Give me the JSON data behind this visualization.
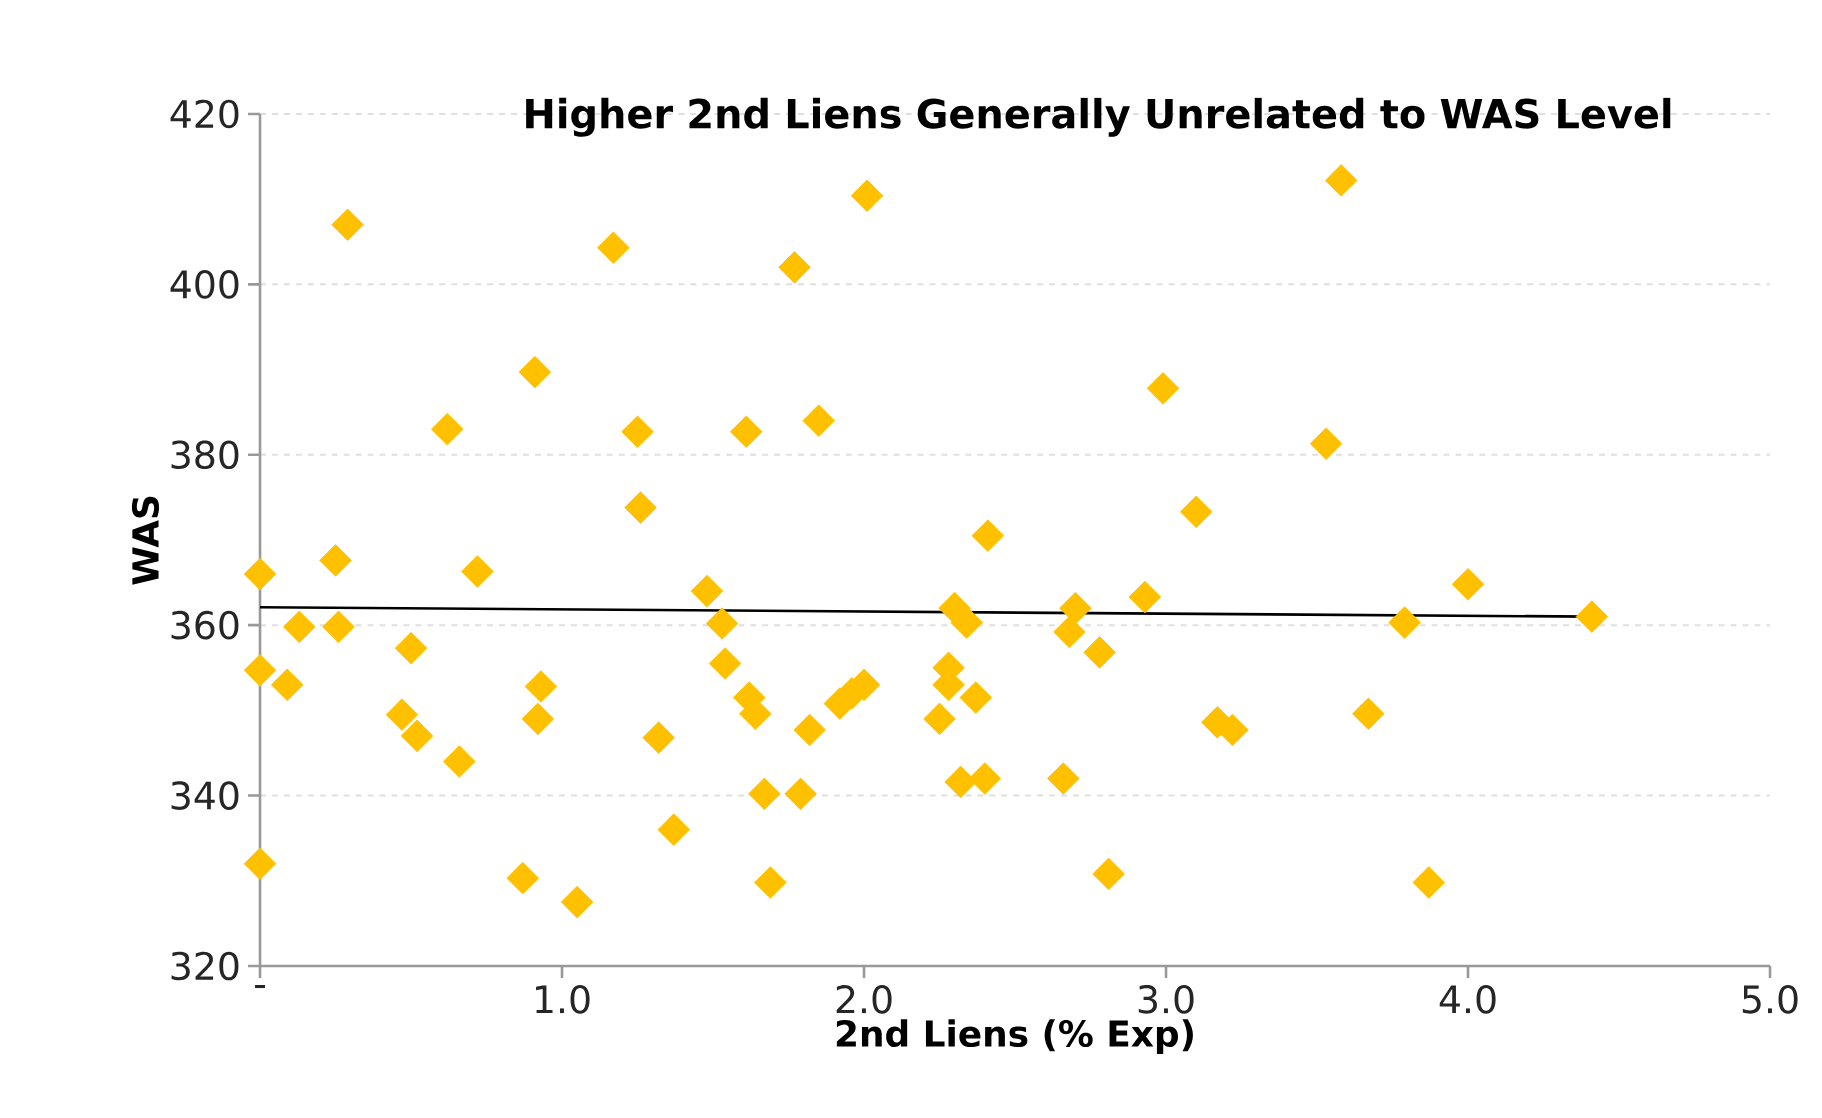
{
  "chart_data": {
    "type": "scatter",
    "title": "Higher 2nd Liens Generally Unrelated to WAS Level",
    "xlabel": "2nd Liens (% Exp)",
    "ylabel": "WAS",
    "xlim": [
      0,
      5
    ],
    "ylim": [
      320,
      420
    ],
    "xticks": [
      {
        "value": 0,
        "label": "-"
      },
      {
        "value": 1,
        "label": "1.0"
      },
      {
        "value": 2,
        "label": "2.0"
      },
      {
        "value": 3,
        "label": "3.0"
      },
      {
        "value": 4,
        "label": "4.0"
      },
      {
        "value": 5,
        "label": "5.0"
      }
    ],
    "yticks": [
      320,
      340,
      360,
      380,
      400,
      420
    ],
    "grid": "y",
    "series": [
      {
        "color": "#ffc000",
        "marker": "diamond",
        "x": [
          0,
          0,
          0,
          0.09,
          0.13,
          0.25,
          0.26,
          0.29,
          0.47,
          0.5,
          0.52,
          0.66,
          0.62,
          0.72,
          0.87,
          0.91,
          0.92,
          0.93,
          1.05,
          1.17,
          1.25,
          1.26,
          1.32,
          1.37,
          1.48,
          1.53,
          1.54,
          1.61,
          1.62,
          1.64,
          1.67,
          1.69,
          1.77,
          1.79,
          1.82,
          1.85,
          1.92,
          1.96,
          2.0,
          2.01,
          2.25,
          2.28,
          2.28,
          2.3,
          2.32,
          2.34,
          2.37,
          2.4,
          2.41,
          2.66,
          2.68,
          2.7,
          2.78,
          2.81,
          2.93,
          2.99,
          3.1,
          3.17,
          3.22,
          3.53,
          3.58,
          3.67,
          3.79,
          3.87,
          4.0,
          4.41
        ],
        "values": [
          366,
          354.7,
          332,
          353,
          359.8,
          367.6,
          359.8,
          407,
          349.5,
          357.3,
          347,
          344,
          383,
          366.3,
          330.3,
          389.7,
          349,
          352.8,
          327.5,
          404.3,
          382.7,
          373.8,
          346.8,
          336,
          364,
          360.2,
          355.5,
          382.7,
          351.5,
          349.6,
          340.2,
          329.8,
          402,
          340.2,
          347.7,
          384,
          350.8,
          352,
          353,
          410.4,
          349,
          353,
          355,
          362,
          341.6,
          360.3,
          351.5,
          342,
          370.5,
          342,
          359.2,
          362,
          356.8,
          330.8,
          363.3,
          387.8,
          373.3,
          348.6,
          347.7,
          381.3,
          412.2,
          349.6,
          360.3,
          329.8,
          364.8,
          361
        ]
      },
      {
        "type": "line",
        "color": "#000000",
        "marker": "none",
        "line_style": "solid",
        "x": [
          0,
          4.41
        ],
        "values": [
          362.1,
          361.0
        ]
      }
    ]
  }
}
